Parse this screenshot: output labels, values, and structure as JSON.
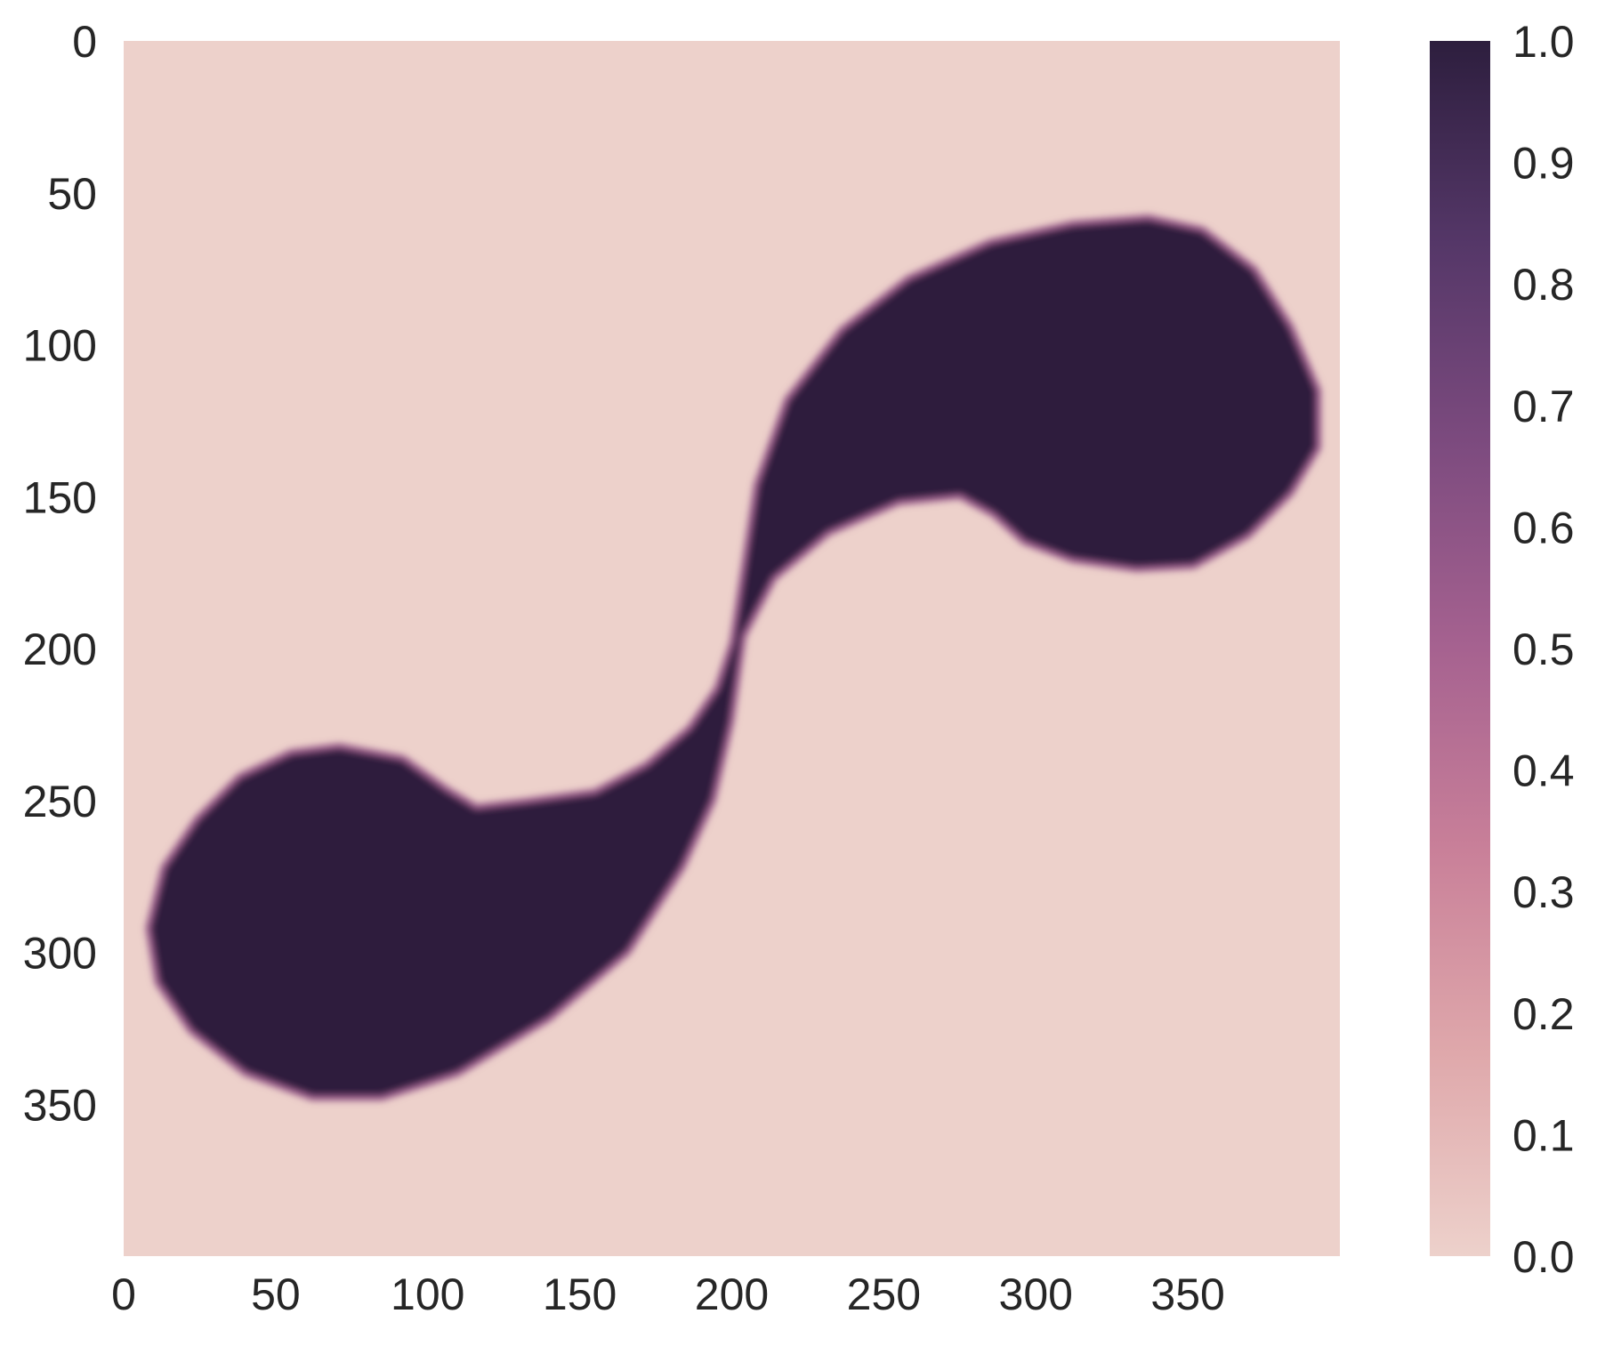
{
  "chart_data": {
    "type": "heatmap",
    "title": "",
    "xlabel": "",
    "ylabel": "",
    "shape": [
      400,
      400
    ],
    "xlim": [
      0,
      400
    ],
    "ylim": [
      400,
      0
    ],
    "x_ticks": [
      0,
      50,
      100,
      150,
      200,
      250,
      300,
      350
    ],
    "y_ticks": [
      0,
      50,
      100,
      150,
      200,
      250,
      300,
      350
    ],
    "x_tick_labels": [
      "0",
      "50",
      "100",
      "150",
      "200",
      "250",
      "300",
      "350"
    ],
    "y_tick_labels": [
      "0",
      "50",
      "100",
      "150",
      "200",
      "250",
      "300",
      "350"
    ],
    "colorbar": {
      "range": [
        0.0,
        1.0
      ],
      "ticks": [
        0.0,
        0.1,
        0.2,
        0.3,
        0.4,
        0.5,
        0.6,
        0.7,
        0.8,
        0.9,
        1.0
      ],
      "tick_labels": [
        "0.0",
        "0.1",
        "0.2",
        "0.3",
        "0.4",
        "0.5",
        "0.6",
        "0.7",
        "0.8",
        "0.9",
        "1.0"
      ],
      "colormap_stops": [
        "#edd1cb",
        "#dfa8ab",
        "#c98099",
        "#a66290",
        "#7d4b7f",
        "#553768",
        "#2d1e3e"
      ],
      "placement": "right"
    },
    "background_value": 0.0,
    "high_region": {
      "value": 1.0,
      "description_points": [
        {
          "x": 70,
          "y": 290
        },
        {
          "x": 150,
          "y": 290
        },
        {
          "x": 200,
          "y": 200
        },
        {
          "x": 255,
          "y": 110
        },
        {
          "x": 330,
          "y": 110
        }
      ]
    },
    "grid": false
  }
}
